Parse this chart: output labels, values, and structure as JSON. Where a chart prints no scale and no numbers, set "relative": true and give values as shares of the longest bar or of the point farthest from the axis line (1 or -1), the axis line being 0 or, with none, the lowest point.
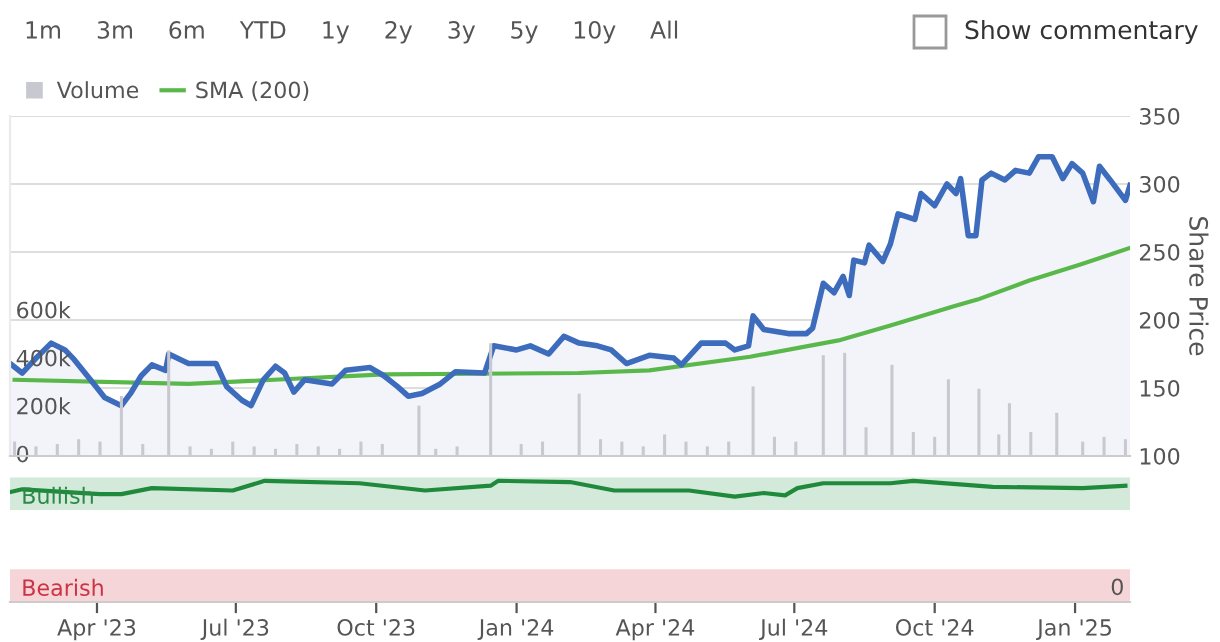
{
  "chart_data": [
    {
      "type": "line",
      "legend": "top left",
      "grid": "y2",
      "tick_labels": "y",
      "y2label": "Share Price",
      "annotations": [
        "1m",
        "3m",
        "6m",
        "YTD",
        "1y",
        "2y",
        "3y",
        "5y",
        "10y",
        "All",
        "Show commentary"
      ],
      "xlim": [
        "2023-02-03",
        "2025-02-06"
      ],
      "ylim": [
        0,
        1417000
      ],
      "yticks": [
        {
          "value": 0,
          "label": "0"
        },
        {
          "value": 200000,
          "label": "200k"
        },
        {
          "value": 400000,
          "label": "400k"
        },
        {
          "value": 600000,
          "label": "600k"
        }
      ],
      "y2lim": [
        100,
        350
      ],
      "y2ticks": [
        100,
        150,
        200,
        250,
        300,
        350
      ],
      "series": [
        {
          "name": "Volume",
          "type": "bar",
          "axis": "y",
          "color": "#c8c9d0",
          "x": [
            "2023-02-06",
            "2023-02-20",
            "2023-03-06",
            "2023-03-20",
            "2023-04-03",
            "2023-04-17",
            "2023-05-01",
            "2023-05-18",
            "2023-06-01",
            "2023-06-15",
            "2023-06-29",
            "2023-07-13",
            "2023-07-27",
            "2023-08-10",
            "2023-08-24",
            "2023-09-07",
            "2023-09-21",
            "2023-10-05",
            "2023-10-29",
            "2023-11-09",
            "2023-11-23",
            "2023-12-15",
            "2024-01-04",
            "2024-01-18",
            "2024-02-11",
            "2024-02-25",
            "2024-03-10",
            "2024-03-24",
            "2024-04-07",
            "2024-04-21",
            "2024-05-05",
            "2024-05-19",
            "2024-06-04",
            "2024-06-18",
            "2024-07-02",
            "2024-07-20",
            "2024-08-03",
            "2024-08-17",
            "2024-09-03",
            "2024-09-17",
            "2024-10-01",
            "2024-10-10",
            "2024-10-30",
            "2024-11-12",
            "2024-11-19",
            "2024-12-03",
            "2024-12-20",
            "2025-01-06",
            "2025-01-20",
            "2025-02-03"
          ],
          "values": [
            60000,
            40000,
            50000,
            70000,
            60000,
            250000,
            50000,
            440000,
            40000,
            30000,
            60000,
            40000,
            30000,
            50000,
            40000,
            30000,
            60000,
            50000,
            210000,
            30000,
            40000,
            470000,
            50000,
            60000,
            260000,
            70000,
            60000,
            40000,
            90000,
            60000,
            40000,
            60000,
            290000,
            80000,
            60000,
            420000,
            430000,
            120000,
            380000,
            100000,
            80000,
            320000,
            280000,
            90000,
            220000,
            100000,
            180000,
            60000,
            80000,
            70000
          ]
        },
        {
          "type": "area",
          "axis": "y2",
          "color": "#3d6cbd",
          "x": [
            "2023-02-03",
            "2023-02-11",
            "2023-02-21",
            "2023-03-02",
            "2023-03-11",
            "2023-03-17",
            "2023-03-30",
            "2023-04-06",
            "2023-04-17",
            "2023-04-23",
            "2023-04-30",
            "2023-05-07",
            "2023-05-16",
            "2023-05-18",
            "2023-05-31",
            "2023-06-18",
            "2023-06-25",
            "2023-07-05",
            "2023-07-11",
            "2023-07-19",
            "2023-07-27",
            "2023-08-02",
            "2023-08-08",
            "2023-08-15",
            "2023-09-02",
            "2023-09-11",
            "2023-09-27",
            "2023-10-06",
            "2023-10-15",
            "2023-10-22",
            "2023-10-31",
            "2023-11-12",
            "2023-11-22",
            "2023-12-11",
            "2023-12-17",
            "2024-01-01",
            "2024-01-10",
            "2024-01-22",
            "2024-02-01",
            "2024-02-11",
            "2024-02-23",
            "2024-03-03",
            "2024-03-13",
            "2024-03-28",
            "2024-04-13",
            "2024-04-18",
            "2024-05-01",
            "2024-05-17",
            "2024-05-23",
            "2024-06-01",
            "2024-06-04",
            "2024-06-11",
            "2024-06-27",
            "2024-07-09",
            "2024-07-13",
            "2024-07-20",
            "2024-07-27",
            "2024-08-02",
            "2024-08-06",
            "2024-08-09",
            "2024-08-16",
            "2024-08-19",
            "2024-08-28",
            "2024-09-02",
            "2024-09-07",
            "2024-09-18",
            "2024-09-22",
            "2024-10-01",
            "2024-10-09",
            "2024-10-15",
            "2024-10-18",
            "2024-10-23",
            "2024-10-28",
            "2024-11-01",
            "2024-11-07",
            "2024-11-16",
            "2024-11-23",
            "2024-12-02",
            "2024-12-08",
            "2024-12-17",
            "2024-12-24",
            "2024-12-30",
            "2025-01-06",
            "2025-01-13",
            "2025-01-17",
            "2025-01-24",
            "2025-02-03",
            "2025-02-06"
          ],
          "values": [
            168,
            161,
            173,
            183,
            178,
            171,
            153,
            143,
            137,
            146,
            159,
            167,
            163,
            175,
            168,
            168,
            151,
            141,
            137,
            156,
            166,
            161,
            147,
            156,
            153,
            163,
            165,
            159,
            151,
            144,
            146,
            153,
            162,
            161,
            181,
            178,
            181,
            175,
            188,
            183,
            181,
            178,
            168,
            174,
            172,
            167,
            183,
            183,
            178,
            181,
            203,
            193,
            190,
            190,
            194,
            227,
            220,
            232,
            218,
            244,
            242,
            255,
            243,
            256,
            278,
            274,
            293,
            284,
            300,
            293,
            304,
            262,
            262,
            303,
            308,
            303,
            310,
            308,
            320,
            320,
            304,
            315,
            308,
            287,
            313,
            303,
            288,
            299
          ]
        },
        {
          "name": "SMA (200)",
          "type": "line",
          "axis": "y2",
          "color": "#5ab84b",
          "x": [
            "2023-02-06",
            "2023-05-31",
            "2023-10-06",
            "2024-02-11",
            "2024-03-28",
            "2024-06-02",
            "2024-07-30",
            "2024-09-02",
            "2024-10-13",
            "2024-10-29",
            "2024-12-02",
            "2025-01-05",
            "2025-02-06"
          ],
          "values": [
            156,
            153,
            160,
            161,
            163,
            173,
            185,
            196,
            210,
            215,
            229,
            241,
            253
          ]
        }
      ]
    },
    {
      "type": "line",
      "relative": true,
      "annotations": [
        "0"
      ],
      "xlim": [
        "2023-02-03",
        "2025-02-06"
      ],
      "xticks": [
        {
          "value": "2023-04-01",
          "label": "Apr '23"
        },
        {
          "value": "2023-07-01",
          "label": "Jul '23"
        },
        {
          "value": "2023-10-01",
          "label": "Oct '23"
        },
        {
          "value": "2024-01-01",
          "label": "Jan '24"
        },
        {
          "value": "2024-04-01",
          "label": "Apr '24"
        },
        {
          "value": "2024-07-01",
          "label": "Jul '24"
        },
        {
          "value": "2024-10-01",
          "label": "Oct '24"
        },
        {
          "value": "2025-01-01",
          "label": "Jan '25"
        }
      ],
      "bands": [
        {
          "axis": "y",
          "from": 0.76,
          "to": 1.03,
          "label": "Bullish",
          "color": "#d3eadb"
        },
        {
          "axis": "y",
          "from": 0,
          "to": 0.27,
          "label": "Bearish",
          "color": "#f6d5d8"
        }
      ],
      "series": [
        {
          "color": "#1f8a3b",
          "x": [
            "2023-02-04",
            "2023-02-11",
            "2023-04-03",
            "2023-04-17",
            "2023-05-07",
            "2023-06-29",
            "2023-07-20",
            "2023-09-20",
            "2023-11-02",
            "2023-12-15",
            "2023-12-20",
            "2024-02-05",
            "2024-03-05",
            "2024-04-23",
            "2024-05-23",
            "2024-06-11",
            "2024-06-25",
            "2024-07-03",
            "2024-07-20",
            "2024-09-02",
            "2024-09-17",
            "2024-11-08",
            "2025-01-06",
            "2025-02-03"
          ],
          "values": [
            0.91,
            0.93,
            0.89,
            0.89,
            0.94,
            0.92,
            1,
            0.98,
            0.92,
            0.96,
            1,
            0.99,
            0.92,
            0.92,
            0.87,
            0.9,
            0.88,
            0.94,
            0.98,
            0.98,
            1,
            0.95,
            0.94,
            0.96
          ]
        }
      ]
    }
  ]
}
